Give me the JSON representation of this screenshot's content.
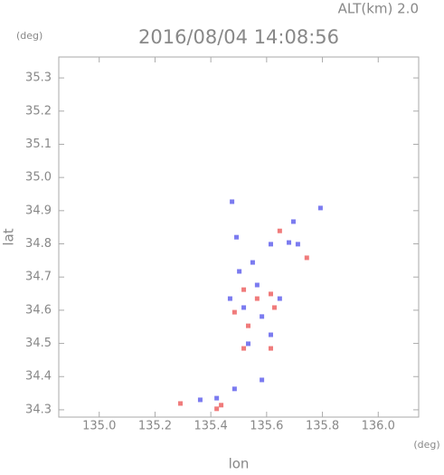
{
  "chart_data": {
    "type": "scatter",
    "title": "2016/08/04 14:08:56",
    "subtitle": "ALT(km)  2.0",
    "y_unit": "(deg)",
    "x_unit": "(deg)",
    "x_label": "lon",
    "y_label": "lat",
    "xlim": [
      134.855,
      136.145
    ],
    "ylim": [
      34.278,
      35.363
    ],
    "xticks": [
      {
        "value": 135,
        "label": "135.0"
      },
      135.2,
      135.4,
      135.6,
      135.8,
      {
        "value": 136,
        "label": "136.0"
      }
    ],
    "yticks": [
      34.3,
      34.4,
      34.5,
      34.6,
      34.7,
      34.8,
      34.9,
      {
        "value": 35,
        "label": "35.0"
      },
      35.1,
      35.2,
      35.3
    ],
    "series": [
      {
        "color": "#7b7bf0",
        "x": [
          135.476,
          135.492,
          135.615,
          135.696,
          135.793,
          135.68,
          135.502,
          135.566,
          135.518,
          135.583,
          135.534,
          135.615,
          135.469,
          135.647,
          135.55,
          135.421,
          135.485,
          135.362,
          135.583,
          135.712
        ],
        "values": [
          34.927,
          34.82,
          34.799,
          34.867,
          34.908,
          34.804,
          34.717,
          34.676,
          34.608,
          34.581,
          34.499,
          34.526,
          34.635,
          34.635,
          34.744,
          34.335,
          34.363,
          34.33,
          34.39,
          34.799
        ]
      },
      {
        "color": "#f07b7b",
        "x": [
          135.437,
          135.421,
          135.291,
          135.615,
          135.744,
          135.518,
          135.566,
          135.615,
          135.485,
          135.534,
          135.628,
          135.518,
          135.647
        ],
        "values": [
          34.314,
          34.303,
          34.319,
          34.485,
          34.758,
          34.485,
          34.635,
          34.649,
          34.594,
          34.553,
          34.608,
          34.662,
          34.839
        ]
      }
    ]
  }
}
